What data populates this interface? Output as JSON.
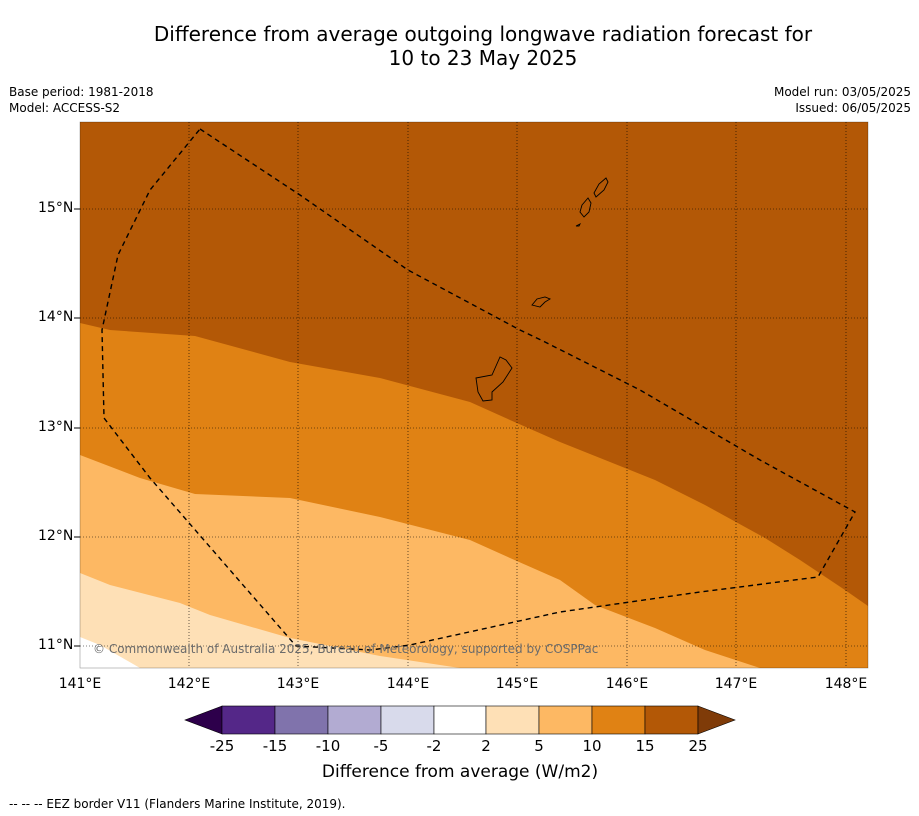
{
  "title_line1": "Difference from average outgoing longwave radiation forecast for",
  "title_line2": "10 to 23 May 2025",
  "base_period": "Base period: 1981-2018",
  "model": "Model: ACCESS-S2",
  "model_run": "Model run: 03/05/2025",
  "issued": "Issued: 06/05/2025",
  "copyright": "© Commonwealth of Australia 2025, Bureau of Meteorology, supported by COSPPac",
  "footer": "--  --  -- EEZ border V11 (Flanders Marine Institute, 2019).",
  "map": {
    "lat_labels": [
      "15°N",
      "14°N",
      "13°N",
      "12°N",
      "11°N"
    ],
    "lon_labels": [
      "141°E",
      "142°E",
      "143°E",
      "144°E",
      "145°E",
      "146°E",
      "147°E",
      "148°E"
    ],
    "colors": {
      "band_25": "#b35806",
      "band_15": "#e08214",
      "band_10": "#fdb863",
      "band_5": "#fee0b6",
      "band_2": "#ffffff"
    }
  },
  "colorbar": {
    "title": "Difference from average (W/m2)",
    "ticks": [
      "-25",
      "-15",
      "-10",
      "-5",
      "-2",
      "2",
      "5",
      "10",
      "15",
      "25"
    ],
    "colors": [
      "#2d004b",
      "#542788",
      "#8073ac",
      "#b2abd2",
      "#d8daeb",
      "#ffffff",
      "#fee0b6",
      "#fdb863",
      "#e08214",
      "#b35806",
      "#7f3b08"
    ]
  }
}
